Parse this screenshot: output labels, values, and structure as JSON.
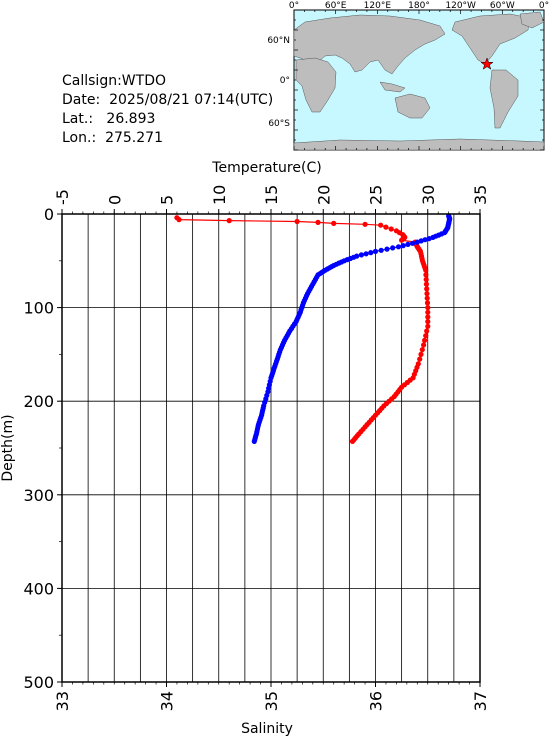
{
  "station": {
    "callsign_label": "Callsign:",
    "callsign": "WTDO",
    "date_label": "Date:",
    "date": "2025/08/21 07:14(UTC)",
    "lat_label": "Lat.:",
    "lat": "26.893",
    "lon_label": "Lon.:",
    "lon": "275.271"
  },
  "map": {
    "top_labels": [
      "0°",
      "60°E",
      "120°E",
      "180°",
      "120°W",
      "60°W",
      "0°"
    ],
    "left_labels": [
      "60°N",
      "0°",
      "60°S"
    ],
    "ocean_color": "#c8f8ff",
    "land_color": "#bdbdbd",
    "marker_color": "#ff0000",
    "marker_icon": "star-icon"
  },
  "chart_data": {
    "type": "line",
    "x_top_label": "Temperature(C)",
    "x_bottom_label": "Salinity",
    "ylabel": "Depth(m)",
    "temperature_ticks": [
      "-5",
      "0",
      "5",
      "10",
      "15",
      "20",
      "25",
      "30",
      "35"
    ],
    "salinity_ticks": [
      "33",
      "34",
      "35",
      "36",
      "37"
    ],
    "depth_ticks": [
      "0",
      "100",
      "200",
      "300",
      "400",
      "500"
    ],
    "temperature_range": [
      -5,
      35
    ],
    "salinity_range": [
      33,
      37
    ],
    "depth_range": [
      0,
      500
    ],
    "series": [
      {
        "axis": "temperature",
        "color": "#ff0000",
        "depth": [
          4,
          6,
          7,
          8,
          9,
          10,
          11,
          12,
          14,
          16,
          18,
          20,
          22,
          25,
          28,
          30,
          35,
          40,
          50,
          60,
          80,
          100,
          120,
          140,
          160,
          175,
          185,
          195,
          205,
          215,
          225,
          235,
          243
        ],
        "values": [
          6.0,
          6.2,
          11.0,
          17.5,
          19.5,
          21.0,
          24.0,
          25.5,
          26.0,
          26.5,
          27.0,
          27.3,
          27.6,
          27.8,
          27.5,
          28.8,
          29.0,
          29.3,
          29.5,
          29.8,
          29.9,
          30.0,
          30.0,
          29.6,
          29.1,
          28.6,
          27.5,
          26.8,
          25.8,
          25.0,
          24.2,
          23.4,
          22.8
        ]
      },
      {
        "axis": "salinity",
        "color": "#0000ff",
        "depth": [
          2,
          5,
          10,
          15,
          20,
          25,
          30,
          35,
          40,
          45,
          50,
          55,
          60,
          65,
          75,
          85,
          95,
          105,
          115,
          125,
          135,
          145,
          155,
          165,
          175,
          190,
          205,
          215,
          225,
          235,
          243
        ],
        "values": [
          36.7,
          36.71,
          36.7,
          36.69,
          36.66,
          36.55,
          36.4,
          36.22,
          36.0,
          35.82,
          35.7,
          35.6,
          35.52,
          35.45,
          35.4,
          35.35,
          35.31,
          35.28,
          35.24,
          35.18,
          35.13,
          35.09,
          35.06,
          35.03,
          35.0,
          34.97,
          34.93,
          34.91,
          34.88,
          34.86,
          34.84
        ]
      }
    ]
  }
}
